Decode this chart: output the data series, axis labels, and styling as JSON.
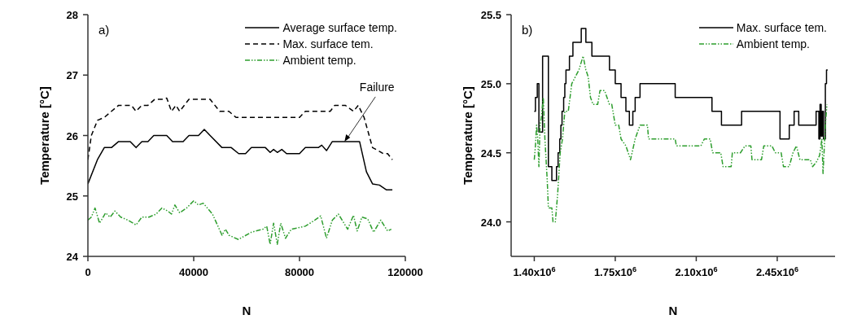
{
  "chart_data": [
    {
      "type": "line",
      "title": "a)",
      "xlabel": "N",
      "ylabel": "Temperature [°C]",
      "xlim": [
        0,
        120000
      ],
      "ylim": [
        24,
        28
      ],
      "xticks": [
        0,
        40000,
        80000,
        120000
      ],
      "yticks": [
        24,
        25,
        26,
        27,
        28
      ],
      "legend": "top right",
      "annotations": [
        {
          "text": "Failure",
          "x": 97000,
          "y": 25.9
        }
      ],
      "series": [
        {
          "name": "Average surface temp.",
          "color": "#000000",
          "line_style": "solid",
          "x": [
            0,
            3600,
            6200,
            8900,
            11600,
            16000,
            18200,
            20400,
            22700,
            24900,
            29800,
            32000,
            36000,
            38200,
            41800,
            44000,
            46200,
            50700,
            54200,
            57000,
            59600,
            61800,
            67100,
            68900,
            70200,
            71600,
            73300,
            75100,
            80000,
            82200,
            87100,
            88400,
            90200,
            92400,
            102700,
            105300,
            107600,
            110200,
            112900,
            115100
          ],
          "values": [
            25.2,
            25.6,
            25.8,
            25.8,
            25.9,
            25.9,
            25.8,
            25.9,
            25.9,
            26.0,
            26.0,
            25.9,
            25.9,
            26.0,
            26.0,
            26.1,
            26.0,
            25.8,
            25.8,
            25.7,
            25.7,
            25.8,
            25.8,
            25.72,
            25.77,
            25.72,
            25.77,
            25.7,
            25.7,
            25.8,
            25.8,
            25.84,
            25.75,
            25.9,
            25.9,
            25.4,
            25.2,
            25.18,
            25.1,
            25.1
          ]
        },
        {
          "name": "Max. surface tem.",
          "color": "#000000",
          "line_style": "dashed",
          "x": [
            0,
            1300,
            3600,
            6200,
            8900,
            11600,
            14200,
            16400,
            18200,
            20400,
            22700,
            25300,
            28400,
            29800,
            31600,
            33300,
            34700,
            38200,
            46200,
            49800,
            53300,
            56000,
            80000,
            82200,
            91600,
            93300,
            97300,
            100400,
            102200,
            104400,
            107600,
            109800,
            111600,
            113300,
            115100
          ],
          "values": [
            25.6,
            26.0,
            26.25,
            26.3,
            26.4,
            26.5,
            26.5,
            26.5,
            26.4,
            26.5,
            26.5,
            26.6,
            26.6,
            26.62,
            26.4,
            26.5,
            26.4,
            26.6,
            26.6,
            26.4,
            26.4,
            26.3,
            26.3,
            26.4,
            26.4,
            26.5,
            26.5,
            26.4,
            26.5,
            26.3,
            25.8,
            25.75,
            25.7,
            25.7,
            25.6
          ]
        },
        {
          "name": "Ambient temp.",
          "color": "#2e9e2e",
          "line_style": "dotted",
          "x": [
            0,
            1300,
            2700,
            4400,
            6700,
            8400,
            10200,
            12400,
            15100,
            18200,
            20400,
            23100,
            25800,
            28000,
            30200,
            31600,
            32900,
            34700,
            37300,
            40000,
            41800,
            43600,
            47100,
            50700,
            52000,
            53300,
            56900,
            61800,
            66200,
            67600,
            68900,
            70200,
            71600,
            72900,
            74700,
            76900,
            82200,
            85800,
            88000,
            90200,
            92400,
            94700,
            98200,
            100400,
            101800,
            103600,
            105800,
            108000,
            110700,
            113300,
            114700
          ],
          "values": [
            24.6,
            24.65,
            24.8,
            24.55,
            24.72,
            24.65,
            24.75,
            24.65,
            24.6,
            24.52,
            24.65,
            24.65,
            24.7,
            24.8,
            24.75,
            24.7,
            24.85,
            24.72,
            24.8,
            24.92,
            24.85,
            24.88,
            24.7,
            24.35,
            24.45,
            24.35,
            24.28,
            24.4,
            24.45,
            24.5,
            24.2,
            24.55,
            24.2,
            24.55,
            24.3,
            24.45,
            24.5,
            24.6,
            24.67,
            24.3,
            24.6,
            24.7,
            24.45,
            24.68,
            24.42,
            24.65,
            24.62,
            24.4,
            24.6,
            24.42,
            24.45
          ]
        }
      ]
    },
    {
      "type": "line",
      "title": "b)",
      "xlabel": "N",
      "ylabel": "Temperature [°C]",
      "xlim": [
        1300000,
        2700000
      ],
      "ylim": [
        23.75,
        25.5
      ],
      "xticks": [
        {
          "value": 1400000,
          "label": "1.40x10$^{6}$"
        },
        {
          "value": 1750000,
          "label": "1.75x10$^{6}$"
        },
        {
          "value": 2100000,
          "label": "2.10x10$^{6}$"
        },
        {
          "value": 2450000,
          "label": "2.45x10$^{6}$"
        }
      ],
      "yticks": [
        {
          "value": 24,
          "label": "24.0"
        },
        24.5,
        {
          "value": 25,
          "label": "25.0"
        },
        25.5
      ],
      "legend": "top right",
      "series": [
        {
          "name": "Max. surface tem.",
          "type": "step",
          "color": "#000000",
          "line_style": "solid",
          "x": [
            1400000,
            1405000,
            1413000,
            1420000,
            1436000,
            1461000,
            1476000,
            1496000,
            1503000,
            1510000,
            1515000,
            1520000,
            1527000,
            1532000,
            1537000,
            1552000,
            1567000,
            1603000,
            1623000,
            1649000,
            1725000,
            1750000,
            1775000,
            1796000,
            1811000,
            1826000,
            1836000,
            1857000,
            2009000,
            2168000,
            2209000,
            2296000,
            2462000,
            2502000,
            2523000,
            2543000,
            2618000,
            2630000,
            2635000,
            2640000,
            2645000,
            2650000,
            2658000,
            2663000,
            2668000
          ],
          "values": [
            24.8,
            24.9,
            25.0,
            24.65,
            25.2,
            24.4,
            24.3,
            24.4,
            24.5,
            24.6,
            24.7,
            24.8,
            24.9,
            25.0,
            25.1,
            25.2,
            25.3,
            25.4,
            25.3,
            25.2,
            25.1,
            25.0,
            24.9,
            24.8,
            24.7,
            24.8,
            24.9,
            25.0,
            24.9,
            24.8,
            24.7,
            24.8,
            24.6,
            24.7,
            24.8,
            24.7,
            24.8,
            24.6,
            24.85,
            24.62,
            24.8,
            24.6,
            25.0,
            25.1,
            25.1
          ]
        },
        {
          "name": "Ambient temp.",
          "color": "#2e9e2e",
          "line_style": "dotted",
          "x": [
            1400000,
            1405000,
            1410000,
            1415000,
            1420000,
            1425000,
            1430000,
            1439000,
            1446000,
            1456000,
            1461000,
            1476000,
            1481000,
            1491000,
            1501000,
            1512000,
            1522000,
            1532000,
            1547000,
            1562000,
            1593000,
            1611000,
            1623000,
            1633000,
            1643000,
            1654000,
            1674000,
            1684000,
            1704000,
            1725000,
            1735000,
            1750000,
            1765000,
            1775000,
            1796000,
            1816000,
            1836000,
            1857000,
            1869000,
            1889000,
            1894000,
            2009000,
            2014000,
            2120000,
            2135000,
            2160000,
            2171000,
            2206000,
            2216000,
            2251000,
            2256000,
            2291000,
            2311000,
            2336000,
            2341000,
            2382000,
            2392000,
            2427000,
            2442000,
            2467000,
            2477000,
            2502000,
            2518000,
            2533000,
            2548000,
            2593000,
            2603000,
            2618000,
            2633000,
            2643000,
            2648000,
            2658000,
            2665000
          ],
          "values": [
            24.45,
            24.55,
            24.7,
            24.6,
            24.4,
            24.7,
            24.75,
            24.9,
            24.6,
            24.3,
            24.1,
            24.1,
            24.0,
            24.0,
            24.2,
            24.5,
            24.6,
            24.8,
            24.8,
            25.0,
            25.1,
            25.2,
            25.1,
            25.05,
            24.9,
            24.85,
            24.85,
            24.95,
            24.95,
            24.85,
            24.85,
            24.7,
            24.7,
            24.6,
            24.55,
            24.45,
            24.6,
            24.7,
            24.7,
            24.7,
            24.6,
            24.6,
            24.55,
            24.55,
            24.6,
            24.6,
            24.5,
            24.5,
            24.4,
            24.4,
            24.5,
            24.5,
            24.55,
            24.55,
            24.45,
            24.45,
            24.55,
            24.55,
            24.5,
            24.5,
            24.4,
            24.4,
            24.5,
            24.55,
            24.45,
            24.45,
            24.4,
            24.43,
            24.48,
            24.6,
            24.35,
            24.7,
            24.85
          ]
        }
      ]
    }
  ]
}
